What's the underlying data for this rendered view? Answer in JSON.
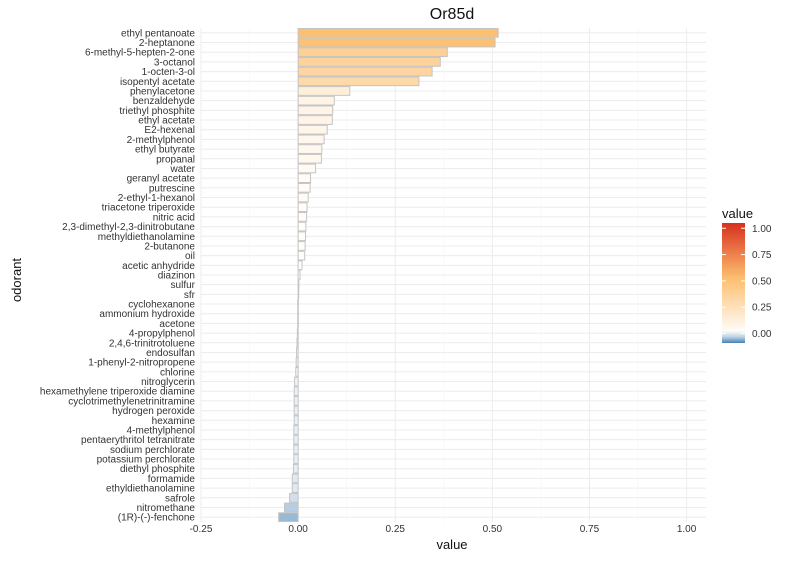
{
  "chart_data": {
    "type": "bar",
    "orientation": "horizontal",
    "title": "Or85d",
    "xlabel": "value",
    "ylabel": "odorant",
    "xlim": [
      -0.25,
      1.05
    ],
    "x_ticks": [
      -0.25,
      0.0,
      0.25,
      0.5,
      0.75,
      1.0
    ],
    "x_tick_labels": [
      "-0.25",
      "0.00",
      "0.25",
      "0.50",
      "0.75",
      "1.00"
    ],
    "grid": true,
    "legend": {
      "title": "value",
      "position": "right",
      "ticks": [
        1.0,
        0.75,
        0.5,
        0.25,
        0.0
      ],
      "tick_labels": [
        "1.00",
        "0.75",
        "0.50",
        "0.25",
        "0.00"
      ],
      "range": [
        -0.09,
        1.05
      ]
    },
    "colors": {
      "negative": "#4682b4",
      "zero": "#ffffff",
      "mid": "#fdbf6f",
      "positive": "#d7301f",
      "bar_border": "#c4c4c4"
    },
    "categories": [
      "ethyl pentanoate",
      "2-heptanone",
      "6-methyl-5-hepten-2-one",
      "3-octanol",
      "1-octen-3-ol",
      "isopentyl acetate",
      "phenylacetone",
      "benzaldehyde",
      "triethyl phosphite",
      "ethyl acetate",
      "E2-hexenal",
      "2-methylphenol",
      "ethyl butyrate",
      "propanal",
      "water",
      "geranyl acetate",
      "putrescine",
      "2-ethyl-1-hexanol",
      "triacetone triperoxide",
      "nitric acid",
      "2,3-dimethyl-2,3-dinitrobutane",
      "methyldiethanolamine",
      "2-butanone",
      "oil",
      "acetic anhydride",
      "diazinon",
      "sulfur",
      "sfr",
      "cyclohexanone",
      "ammonium hydroxide",
      "acetone",
      "4-propylphenol",
      "2,4,6-trinitrotoluene",
      "endosulfan",
      "1-phenyl-2-nitropropene",
      "chlorine",
      "nitroglycerin",
      "hexamethylene triperoxide diamine",
      "cyclotrimethylenetrinitramine",
      "hydrogen peroxide",
      "hexamine",
      "4-methylphenol",
      "pentaerythritol tetranitrate",
      "sodium perchlorate",
      "potassium perchlorate",
      "diethyl phosphite",
      "formamide",
      "ethyldiethanolamine",
      "safrole",
      "nitromethane",
      "(1R)-(-)-fenchone"
    ],
    "values": [
      0.515,
      0.507,
      0.384,
      0.366,
      0.345,
      0.311,
      0.133,
      0.093,
      0.089,
      0.088,
      0.075,
      0.067,
      0.061,
      0.06,
      0.045,
      0.032,
      0.031,
      0.026,
      0.023,
      0.022,
      0.02,
      0.019,
      0.018,
      0.017,
      0.01,
      0.005,
      0.002,
      0.001,
      -0.001,
      -0.001,
      -0.001,
      -0.002,
      -0.003,
      -0.004,
      -0.005,
      -0.006,
      -0.009,
      -0.01,
      -0.01,
      -0.01,
      -0.01,
      -0.011,
      -0.011,
      -0.011,
      -0.011,
      -0.012,
      -0.015,
      -0.015,
      -0.022,
      -0.035,
      -0.05
    ]
  }
}
